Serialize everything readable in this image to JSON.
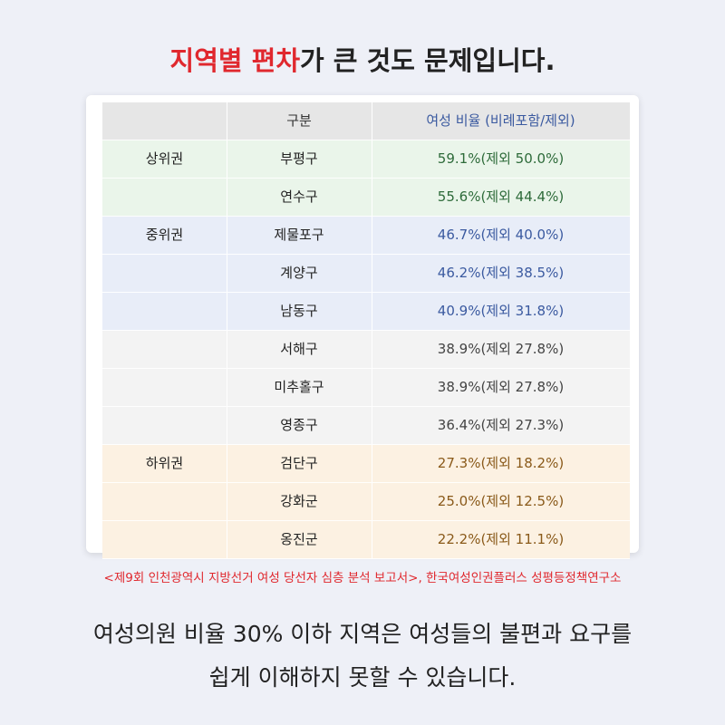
{
  "title": {
    "highlight": "지역별 편차",
    "rest": "가 큰 것도 문제입니다."
  },
  "table": {
    "header": {
      "region": "구분",
      "ratio": "여성 비율 (비례포함/제외)"
    },
    "groups": [
      {
        "label": "상위권",
        "rows": [
          {
            "region": "부평구",
            "ratio": "59.1%(제외 50.0%)"
          },
          {
            "region": "연수구",
            "ratio": "55.6%(제외 44.4%)"
          }
        ]
      },
      {
        "label": "중위권",
        "rows": [
          {
            "region": "제물포구",
            "ratio": "46.7%(제외 40.0%)"
          },
          {
            "region": "계양구",
            "ratio": "46.2%(제외 38.5%)"
          },
          {
            "region": "남동구",
            "ratio": "40.9%(제외 31.8%)"
          }
        ]
      },
      {
        "rows": [
          {
            "region": "서해구",
            "ratio": "38.9%(제외 27.8%)"
          },
          {
            "region": "미추홀구",
            "ratio": "38.9%(제외 27.8%)"
          },
          {
            "region": "영종구",
            "ratio": "36.4%(제외 27.3%)"
          }
        ]
      },
      {
        "label": "하위권",
        "rows": [
          {
            "region": "검단구",
            "ratio": "27.3%(제외 18.2%)"
          },
          {
            "region": "강화군",
            "ratio": "25.0%(제외 12.5%)"
          },
          {
            "region": "옹진군",
            "ratio": "22.2%(제외 11.1%)"
          }
        ]
      }
    ]
  },
  "source": "<제9회 인천광역시 지방선거 여성 당선자 심층 분석 보고서>, 한국여성인권플러스 성평등정책연구소",
  "footer": {
    "line1": "여성의원 비율 30% 이하 지역은 여성들의 불편과 요구를",
    "line2": "쉽게 이해하지 못할 수 있습니다."
  }
}
